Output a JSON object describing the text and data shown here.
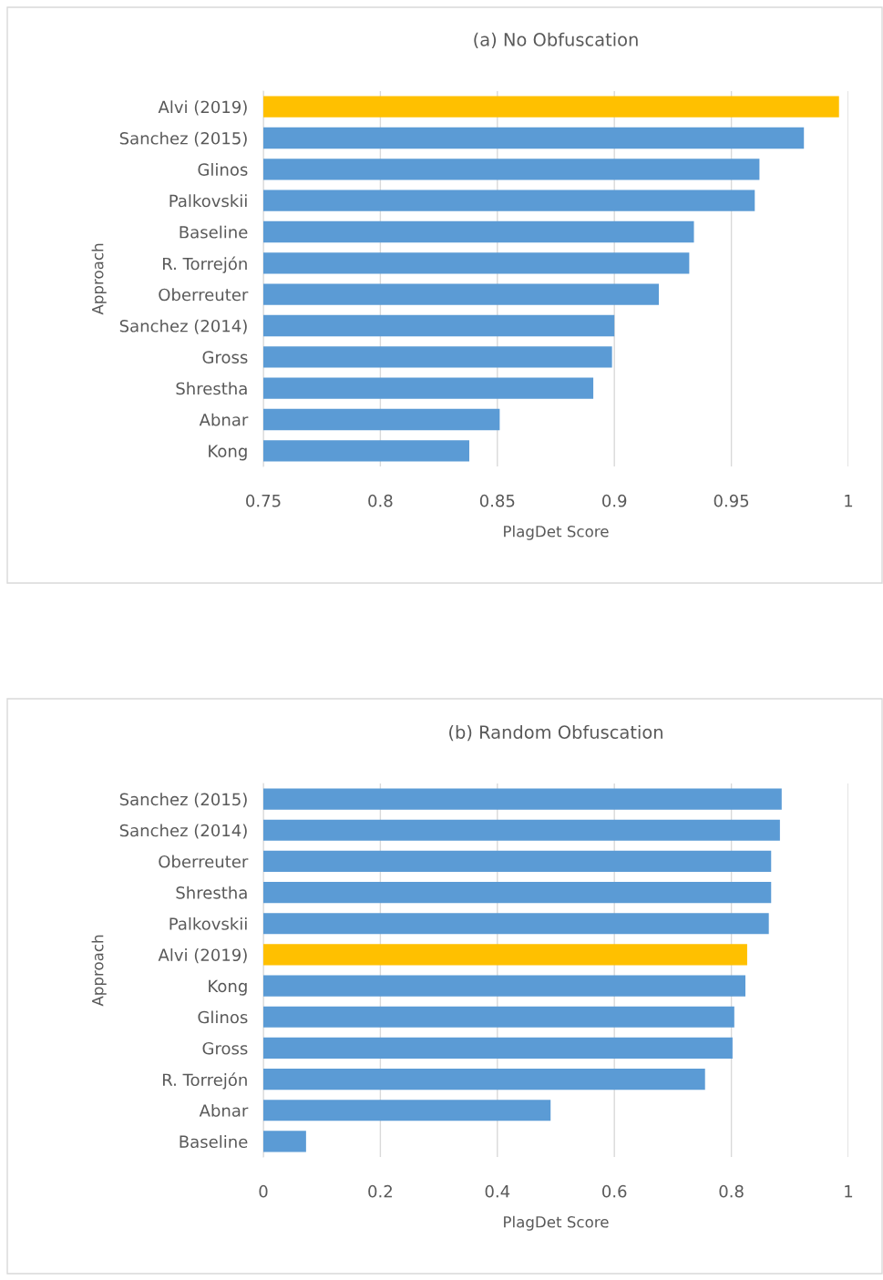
{
  "chart_data": [
    {
      "type": "bar",
      "orientation": "horizontal",
      "title": "(a) No Obfuscation",
      "xlabel": "PlagDet Score",
      "ylabel": "Approach",
      "categories": [
        "Alvi (2019)",
        "Sanchez (2015)",
        "Glinos",
        "Palkovskii",
        "Baseline",
        "R. Torrejón",
        "Oberreuter",
        "Sanchez (2014)",
        "Gross",
        "Shrestha",
        "Abnar",
        "Kong"
      ],
      "values": [
        0.996,
        0.981,
        0.962,
        0.96,
        0.934,
        0.932,
        0.919,
        0.9,
        0.899,
        0.891,
        0.851,
        0.838
      ],
      "colors": [
        "#ffc000",
        "#5b9bd5",
        "#5b9bd5",
        "#5b9bd5",
        "#5b9bd5",
        "#5b9bd5",
        "#5b9bd5",
        "#5b9bd5",
        "#5b9bd5",
        "#5b9bd5",
        "#5b9bd5",
        "#5b9bd5"
      ],
      "xlim": [
        0.75,
        1
      ],
      "xticks": [
        0.75,
        0.8,
        0.85,
        0.9,
        0.95,
        1
      ],
      "grid": "x",
      "legend": false
    },
    {
      "type": "bar",
      "orientation": "horizontal",
      "title": "(b) Random Obfuscation",
      "xlabel": "PlagDet Score",
      "ylabel": "Approach",
      "categories": [
        "Sanchez (2015)",
        "Sanchez (2014)",
        "Oberreuter",
        "Shrestha",
        "Palkovskii",
        "Alvi (2019)",
        "Kong",
        "Glinos",
        "Gross",
        "R. Torrejón",
        "Abnar",
        "Baseline"
      ],
      "values": [
        0.886,
        0.883,
        0.868,
        0.868,
        0.864,
        0.827,
        0.824,
        0.805,
        0.802,
        0.755,
        0.491,
        0.073
      ],
      "colors": [
        "#5b9bd5",
        "#5b9bd5",
        "#5b9bd5",
        "#5b9bd5",
        "#5b9bd5",
        "#ffc000",
        "#5b9bd5",
        "#5b9bd5",
        "#5b9bd5",
        "#5b9bd5",
        "#5b9bd5",
        "#5b9bd5"
      ],
      "xlim": [
        0,
        1
      ],
      "xticks": [
        0,
        0.2,
        0.4,
        0.6,
        0.8,
        1
      ],
      "grid": "x",
      "legend": false
    }
  ]
}
